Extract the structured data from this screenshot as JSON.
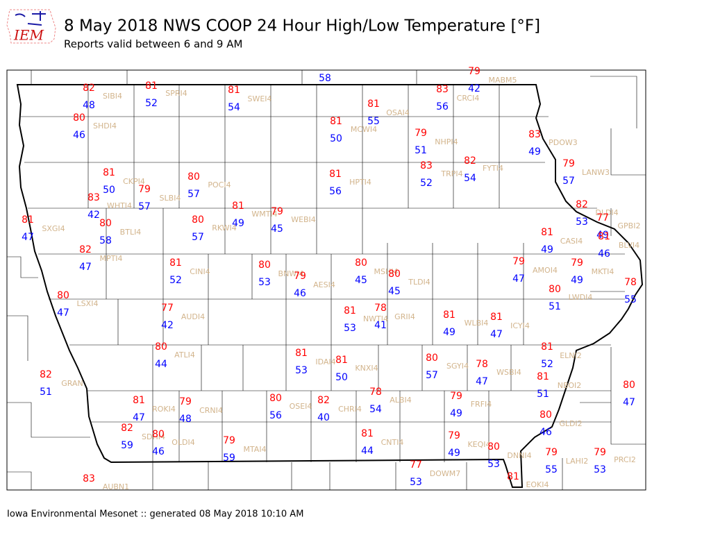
{
  "header": {
    "logo": "IEM",
    "title": "8 May 2018 NWS COOP 24 Hour High/Low Temperature [°F]",
    "subtitle": "Reports valid between 6 and 9 AM"
  },
  "footer": "Iowa Environmental Mesonet :: generated 08 May 2018 10:10 AM",
  "stations": [
    {
      "id": "SIBI4",
      "high": 82,
      "low": 48
    },
    {
      "id": "SPRI4",
      "high": 81,
      "low": 52
    },
    {
      "id": "SWEI4",
      "high": 81,
      "low": 54
    },
    {
      "low": 58
    },
    {
      "id": "MABM5",
      "high": 79,
      "low": 42
    },
    {
      "id": "CRCI4",
      "high": 83,
      "low": 56
    },
    {
      "id": "OSAI4",
      "high": 81,
      "low": 55
    },
    {
      "id": "MCWI4",
      "high": 81,
      "low": 50
    },
    {
      "id": "SHDI4",
      "high": 80,
      "low": 46
    },
    {
      "id": "NHPI4",
      "high": 79,
      "low": 51
    },
    {
      "id": "PDOW3",
      "high": 83,
      "low": 49
    },
    {
      "id": "FYTI4",
      "high": 82,
      "low": 54
    },
    {
      "id": "TRPI4",
      "high": 83,
      "low": 52
    },
    {
      "id": "LANW3",
      "high": 79,
      "low": 57
    },
    {
      "id": "HPTI4",
      "high": 81,
      "low": 56
    },
    {
      "id": "CKPI4",
      "high": 81,
      "low": 50
    },
    {
      "id": "POCI4",
      "high": 80,
      "low": 57
    },
    {
      "id": "SLBI4",
      "high": 79,
      "low": 57
    },
    {
      "id": "WHTI4",
      "high": 83,
      "low": 42
    },
    {
      "id": "WMTI4",
      "high": 81,
      "low": 49
    },
    {
      "id": "WEBI4",
      "high": 79,
      "low": 45
    },
    {
      "id": "DLDI4",
      "high": 82,
      "low": 53
    },
    {
      "id": "GPBI2",
      "high": 77,
      "low": 49
    },
    {
      "id": "BLVI4",
      "high": 81,
      "low": 46
    },
    {
      "id": "SXGI4",
      "high": 81,
      "low": 47
    },
    {
      "id": "BTLI4",
      "high": 80,
      "low": 58
    },
    {
      "id": "RKWI4",
      "high": 80,
      "low": 57
    },
    {
      "id": "CASI4",
      "high": 81,
      "low": 49
    },
    {
      "id": "MPTI4",
      "high": 82,
      "low": 47
    },
    {
      "id": "CINI4",
      "high": 81,
      "low": 52
    },
    {
      "id": "BNWI4",
      "high": 80,
      "low": 53
    },
    {
      "id": "AESI4",
      "high": 79,
      "low": 46
    },
    {
      "id": "MSHI4",
      "high": 80,
      "low": 45
    },
    {
      "id": "TLDI4",
      "high": 80,
      "low": 45
    },
    {
      "id": "AMOI4",
      "high": 79,
      "low": 47
    },
    {
      "id": "MKTI4",
      "high": 79,
      "low": 49
    },
    {
      "id": "LWDI4",
      "high": 80,
      "low": 51
    },
    {
      "id": "LSXI4",
      "high": 80,
      "low": 47
    },
    {
      "id": "GRII4",
      "high": 78,
      "low": 41
    },
    {
      "id": "NWTI4",
      "high": 81,
      "low": 53
    },
    {
      "id": "AUDI4",
      "high": 77,
      "low": 42
    },
    {
      "id": "WLBI4",
      "high": 81,
      "low": 49
    },
    {
      "id": "ICYI4",
      "high": 81,
      "low": 47
    },
    {
      "high": 78,
      "low": 55
    },
    {
      "id": "ATLI4",
      "high": 80,
      "low": 44
    },
    {
      "id": "IDAI4",
      "high": 81,
      "low": 53
    },
    {
      "id": "KNXI4",
      "high": 81,
      "low": 50
    },
    {
      "id": "ELNI2",
      "high": 81,
      "low": 52
    },
    {
      "id": "SGYI4",
      "high": 80,
      "low": 57
    },
    {
      "id": "WSBI4",
      "high": 78,
      "low": 47
    },
    {
      "id": "GRAN",
      "high": 82,
      "low": 51
    },
    {
      "id": "NBOI2",
      "high": 81,
      "low": 51
    },
    {
      "high": 80,
      "low": 47
    },
    {
      "id": "ROKI4",
      "high": 81,
      "low": 47
    },
    {
      "id": "CRNI4",
      "high": 79,
      "low": 48
    },
    {
      "id": "OSEI4",
      "high": 80,
      "low": 56
    },
    {
      "id": "CHRI4",
      "high": 82,
      "low": 40
    },
    {
      "id": "ALBI4",
      "high": 78,
      "low": 54
    },
    {
      "id": "FRFI4",
      "high": 79,
      "low": 49
    },
    {
      "id": "GLDI2",
      "high": 80,
      "low": 46
    },
    {
      "id": "SDHI4",
      "high": 82,
      "low": 59
    },
    {
      "id": "OLDI4",
      "high": 80,
      "low": 46
    },
    {
      "id": "MTAI4",
      "high": 79,
      "low": 59
    },
    {
      "id": "CNTI4",
      "high": 81,
      "low": 44
    },
    {
      "id": "KEQI4",
      "high": 79,
      "low": 49
    },
    {
      "id": "DNNI4",
      "high": 80,
      "low": 53
    },
    {
      "id": "LAHI2",
      "high": 79,
      "low": 55
    },
    {
      "id": "PRCI2",
      "high": 79,
      "low": 53
    },
    {
      "id": "DOWM7",
      "high": 77,
      "low": 53
    },
    {
      "id": "EOKI4",
      "high": 81
    },
    {
      "id": "AUBN1",
      "high": 83
    }
  ]
}
